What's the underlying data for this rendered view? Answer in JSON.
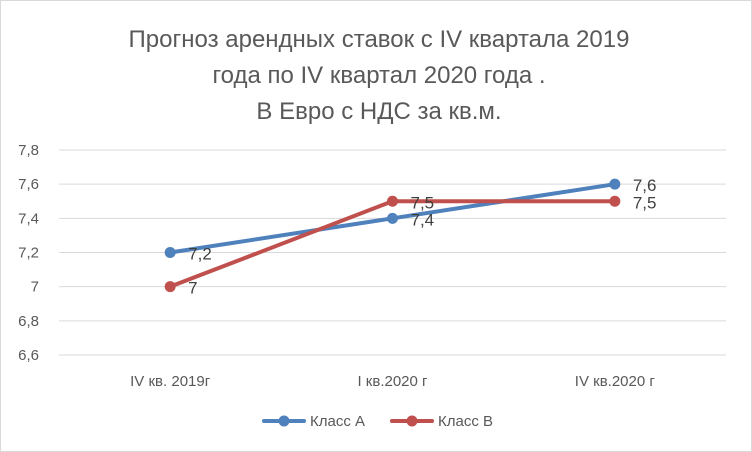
{
  "chart_data": {
    "type": "line",
    "title_lines": [
      "Прогноз арендных ставок  с IV квартала 2019",
      "года по IV квартал 2020 года .",
      "В Евро с НДС за кв.м."
    ],
    "xlabel": "",
    "ylabel": "",
    "categories": [
      "IV кв. 2019г",
      "I кв.2020 г",
      "IV кв.2020 г"
    ],
    "ylim": [
      6.6,
      7.8
    ],
    "yticks": [
      6.6,
      6.8,
      7,
      7.2,
      7.4,
      7.6,
      7.8
    ],
    "ytick_labels": [
      "6,6",
      "6,8",
      "7",
      "7,2",
      "7,4",
      "7,6",
      "7,8"
    ],
    "grid": true,
    "legend_position": "bottom",
    "series": [
      {
        "name": "Класс А",
        "color": "#4f81bd",
        "values": [
          7.2,
          7.4,
          7.6
        ],
        "labels": [
          "7,2",
          "7,4",
          "7,6"
        ]
      },
      {
        "name": "Класс В",
        "color": "#c0504d",
        "values": [
          7.0,
          7.5,
          7.5
        ],
        "labels": [
          "7",
          "7,5",
          "7,5"
        ]
      }
    ]
  }
}
